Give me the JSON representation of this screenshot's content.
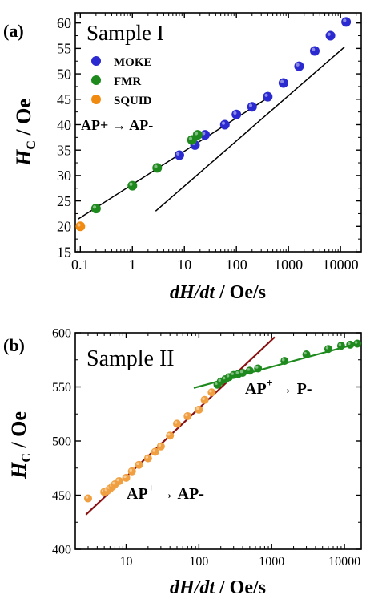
{
  "figure": {
    "panel_a_label": "(a)",
    "panel_b_label": "(b)"
  },
  "chart_data": [
    {
      "type": "scatter",
      "panel": "(a)",
      "title": "Sample I",
      "annotation": "AP+ → AP-",
      "xlabel": "dH/dt / Oe/s",
      "ylabel": "H_C / Oe",
      "xlabel_parts": [
        "dH/dt",
        " / Oe/s"
      ],
      "ylabel_parts": [
        "H",
        "C",
        " / Oe"
      ],
      "xscale": "log",
      "xlim": [
        0.08,
        25000
      ],
      "ylim": [
        15,
        62
      ],
      "xticks": [
        0.1,
        1,
        10,
        100,
        1000,
        10000
      ],
      "xtick_labels": [
        "0.1",
        "1",
        "10",
        "100",
        "1000",
        "10000"
      ],
      "yticks": [
        15,
        20,
        25,
        30,
        35,
        40,
        45,
        50,
        55,
        60
      ],
      "ytick_labels": [
        "15",
        "20",
        "25",
        "30",
        "35",
        "40",
        "45",
        "50",
        "55",
        "60"
      ],
      "legend_position": "top-left",
      "series": [
        {
          "name": "MOKE",
          "color": "#2a2ad0",
          "x": [
            8,
            16,
            25,
            60,
            100,
            200,
            400,
            800,
            1600,
            3200,
            6400,
            12800
          ],
          "y": [
            34,
            36,
            38,
            40,
            42,
            43.5,
            45.5,
            48.2,
            51.5,
            54.5,
            57.5,
            60.2
          ]
        },
        {
          "name": "FMR",
          "color": "#1e8a1e",
          "x": [
            0.2,
            1,
            3,
            14,
            18
          ],
          "y": [
            23.5,
            28,
            31.5,
            37,
            38
          ]
        },
        {
          "name": "SQUID",
          "color": "#f08a10",
          "x": [
            0.1
          ],
          "y": [
            20
          ]
        }
      ],
      "fit_lines": [
        {
          "color": "#000000",
          "x": [
            0.09,
            450
          ],
          "y": [
            21.4,
            45.6
          ]
        },
        {
          "color": "#000000",
          "x": [
            2.8,
            12000
          ],
          "y": [
            23,
            55.3
          ]
        }
      ]
    },
    {
      "type": "scatter",
      "panel": "(b)",
      "title": "Sample II",
      "annotations": [
        "AP+ → P-",
        "AP+ → AP-"
      ],
      "annotation_parts": [
        {
          "pre": "AP",
          "sup": "+",
          "post": " → P-"
        },
        {
          "pre": "AP",
          "sup": "+",
          "post": " → AP-"
        }
      ],
      "xlabel": "dH/dt / Oe/s",
      "ylabel": "H_C / Oe",
      "xlabel_parts": [
        "dH/dt",
        " / Oe/s"
      ],
      "ylabel_parts": [
        "H",
        "C",
        " / Oe"
      ],
      "xscale": "log",
      "xlim": [
        2,
        17000
      ],
      "ylim": [
        400,
        600
      ],
      "xticks": [
        10,
        100,
        1000,
        10000
      ],
      "xtick_labels": [
        "10",
        "100",
        "1000",
        "10000"
      ],
      "yticks": [
        400,
        450,
        500,
        550,
        600
      ],
      "ytick_labels": [
        "400",
        "450",
        "500",
        "550",
        "600"
      ],
      "series": [
        {
          "name": "",
          "color": "#f0a040",
          "x": [
            3,
            5,
            5.5,
            6,
            6.5,
            7,
            8,
            10,
            12,
            15,
            20,
            25,
            30,
            40,
            50,
            70,
            100,
            120,
            150
          ],
          "y": [
            447,
            453,
            454,
            456,
            458,
            460,
            463,
            466,
            472,
            478,
            484,
            490,
            495,
            505,
            516,
            523,
            529,
            538,
            545
          ]
        },
        {
          "name": "",
          "color": "#1e8a1e",
          "x": [
            180,
            200,
            230,
            260,
            300,
            350,
            400,
            500,
            650,
            1500,
            3000,
            6000,
            9000,
            12000,
            15000
          ],
          "y": [
            552,
            555,
            557,
            559,
            561,
            562,
            563,
            565,
            567,
            574,
            580,
            585,
            588,
            589,
            590
          ]
        }
      ],
      "fit_lines": [
        {
          "color": "#8a1010",
          "x": [
            2.8,
            1100
          ],
          "y": [
            432,
            596
          ]
        },
        {
          "color": "#1e8a1e",
          "x": [
            85,
            17000
          ],
          "y": [
            549,
            591
          ]
        }
      ]
    }
  ]
}
